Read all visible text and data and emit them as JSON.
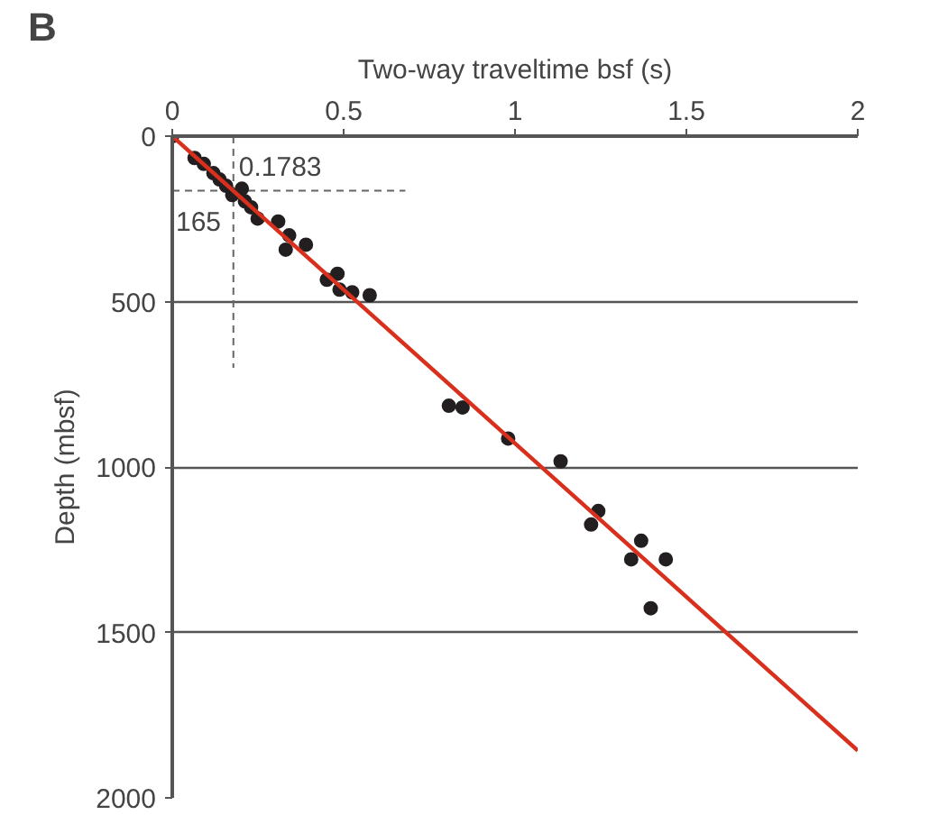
{
  "chart_data": {
    "type": "scatter",
    "xlabel": "Two-way traveltime bsf (s)",
    "ylabel": "Depth (mbsf)",
    "annotations": [
      "B"
    ],
    "xlim": [
      0,
      2
    ],
    "ylim": [
      2000,
      0
    ],
    "xticks": [
      0,
      0.5,
      1,
      1.5,
      2
    ],
    "yticks": [
      0,
      500,
      1000,
      1500,
      2000
    ],
    "grid": "y",
    "series": [
      {
        "marker": "circle",
        "color": "#231f20",
        "x": [
          0,
          0.065,
          0.092,
          0.12,
          0.138,
          0.157,
          0.175,
          0.203,
          0.212,
          0.23,
          0.249,
          0.309,
          0.341,
          0.331,
          0.39,
          0.482,
          0.451,
          0.488,
          0.525,
          0.576,
          0.807,
          0.847,
          0.98,
          1.133,
          1.243,
          1.222,
          1.368,
          1.339,
          1.44,
          1.396
        ],
        "values": [
          0,
          66,
          84,
          112,
          131,
          150,
          178,
          159,
          197,
          215,
          249,
          258,
          300,
          343,
          328,
          416,
          434,
          464,
          472,
          481,
          815,
          820,
          914,
          983,
          1133,
          1174,
          1223,
          1279,
          1279,
          1427
        ]
      },
      {
        "type": "line",
        "color": "#d9301e",
        "x": [
          0,
          2
        ],
        "values": [
          0,
          1857
        ]
      }
    ],
    "ref_lines": [
      {
        "axis": "x",
        "value": 0.1783,
        "label": "0.1783",
        "color": "#666666",
        "line_style": "dashed"
      },
      {
        "axis": "y",
        "value": 165,
        "label": "165",
        "color": "#666666",
        "line_style": "dashed"
      }
    ]
  }
}
